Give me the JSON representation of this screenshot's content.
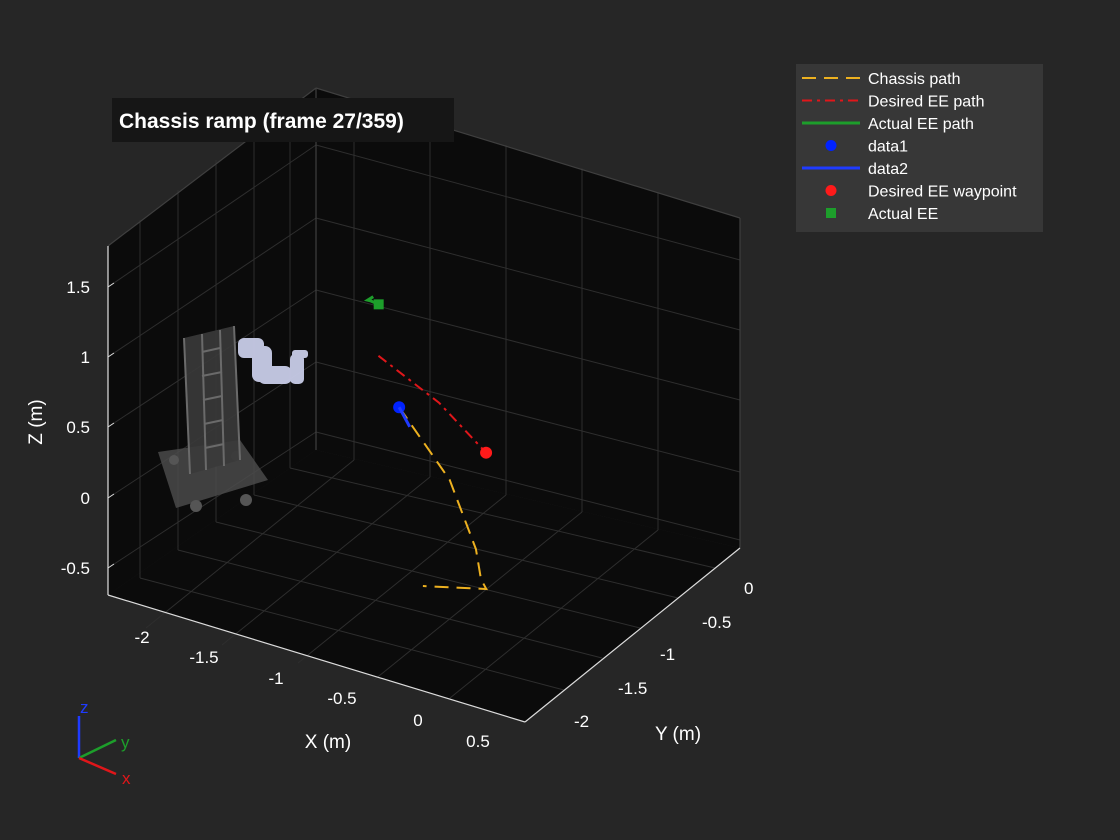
{
  "chart_data": {
    "type": "line",
    "title": "Chassis ramp (frame 27/359)",
    "xlabel": "X (m)",
    "ylabel": "Y (m)",
    "zlabel": "Z (m)",
    "xlim": [
      -2.35,
      0.75
    ],
    "ylim": [
      -2.35,
      0.2
    ],
    "zlim": [
      -0.65,
      1.8
    ],
    "x_ticks": [
      "-2",
      "-1.5",
      "-1",
      "-0.5",
      "0",
      "0.5"
    ],
    "y_ticks": [
      "0",
      "-0.5",
      "-1",
      "-1.5",
      "-2"
    ],
    "z_ticks": [
      "1.5",
      "1",
      "0.5",
      "0",
      "-0.5"
    ],
    "grid": true,
    "legend_position": "top-right",
    "background": "#0b0b0b",
    "series": [
      {
        "name": "Chassis path",
        "style": "dashed",
        "color": "#edb120",
        "x": [
          -1.55,
          -0.75,
          -0.1,
          0.15,
          0.25,
          -0.1
        ],
        "y": [
          -2.05,
          -1.35,
          -0.6,
          -0.25,
          -0.15,
          0.05
        ],
        "z": [
          0,
          0,
          0,
          0,
          0,
          0
        ]
      },
      {
        "name": "Desired EE path",
        "style": "dashdot",
        "color": "#e0161a",
        "x": [
          -0.4,
          0.05,
          0.4
        ],
        "y": [
          0.1,
          0.1,
          0.1
        ],
        "z": [
          1.55,
          1.35,
          1.1
        ]
      },
      {
        "name": "Actual EE path",
        "style": "solid",
        "color": "#1d9e2b",
        "x": [
          -1.5,
          -1.45,
          -1.4,
          -1.32
        ],
        "y": [
          -1.65,
          -1.5,
          -1.45,
          -1.42
        ],
        "z": [
          0.95,
          1.0,
          1.03,
          1.04
        ]
      },
      {
        "name": "data1",
        "style": "marker-circle",
        "color": "#0022ff",
        "x": [
          -1.55
        ],
        "y": [
          -2.05
        ],
        "z": [
          0
        ]
      },
      {
        "name": "data2",
        "style": "solid",
        "color": "#1f3bff",
        "x": [
          -1.55,
          -1.35
        ],
        "y": [
          -2.05,
          -1.85
        ],
        "z": [
          0,
          0
        ]
      },
      {
        "name": "Desired EE waypoint",
        "style": "marker-circle",
        "color": "#ff1a1a",
        "x": [
          0.4
        ],
        "y": [
          0.1
        ],
        "z": [
          1.1
        ]
      },
      {
        "name": "Actual EE",
        "style": "marker-square",
        "color": "#1d9e2b",
        "x": [
          -1.32
        ],
        "y": [
          -1.42
        ],
        "z": [
          1.04
        ]
      }
    ],
    "triad": {
      "x": "x",
      "y": "y",
      "z": "z"
    }
  }
}
